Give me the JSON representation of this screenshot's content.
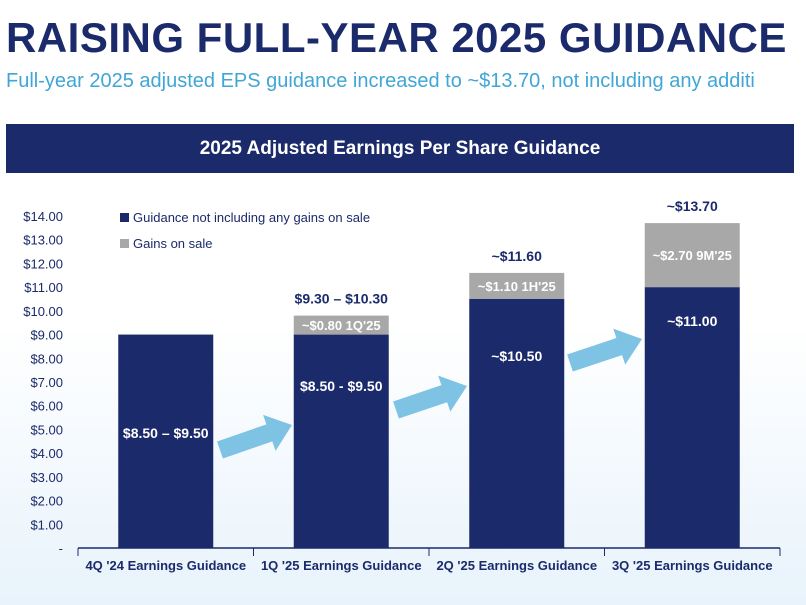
{
  "header": {
    "title": "RAISING FULL-YEAR 2025 GUIDANCE",
    "subtitle": "Full-year 2025 adjusted EPS guidance increased to ~$13.70, not including any additi"
  },
  "colors": {
    "navy": "#1b2a6b",
    "gray": "#a8a8a8",
    "arrow": "#7ec3e3",
    "subtitle": "#3fa6d6"
  },
  "chart_data": {
    "type": "bar",
    "stacked": true,
    "title": "2025 Adjusted Earnings Per Share Guidance",
    "xlabel": "",
    "ylabel": "",
    "ylim": [
      0,
      14
    ],
    "yticks": [
      "-",
      "$1.00",
      "$2.00",
      "$3.00",
      "$4.00",
      "$5.00",
      "$6.00",
      "$7.00",
      "$8.00",
      "$9.00",
      "$10.00",
      "$11.00",
      "$12.00",
      "$13.00",
      "$14.00"
    ],
    "categories": [
      "4Q '24 Earnings Guidance",
      "1Q '25 Earnings Guidance",
      "2Q '25 Earnings Guidance",
      "3Q '25 Earnings Guidance"
    ],
    "series": [
      {
        "name": "Guidance not including any gains on sale",
        "color": "#1b2a6b",
        "values": [
          9.0,
          9.0,
          10.5,
          11.0
        ],
        "labels": [
          "$8.50 – $9.50",
          "$8.50 - $9.50",
          "~$10.50",
          "~$11.00"
        ]
      },
      {
        "name": "Gains on sale",
        "color": "#a8a8a8",
        "values": [
          0,
          0.8,
          1.1,
          2.7
        ],
        "labels": [
          "",
          "~$0.80 1Q'25",
          "~$1.10 1H'25",
          "~$2.70 9M'25"
        ]
      }
    ],
    "total_labels": [
      "",
      "$9.30 – $10.30",
      "~$11.60",
      "~$13.70"
    ]
  }
}
